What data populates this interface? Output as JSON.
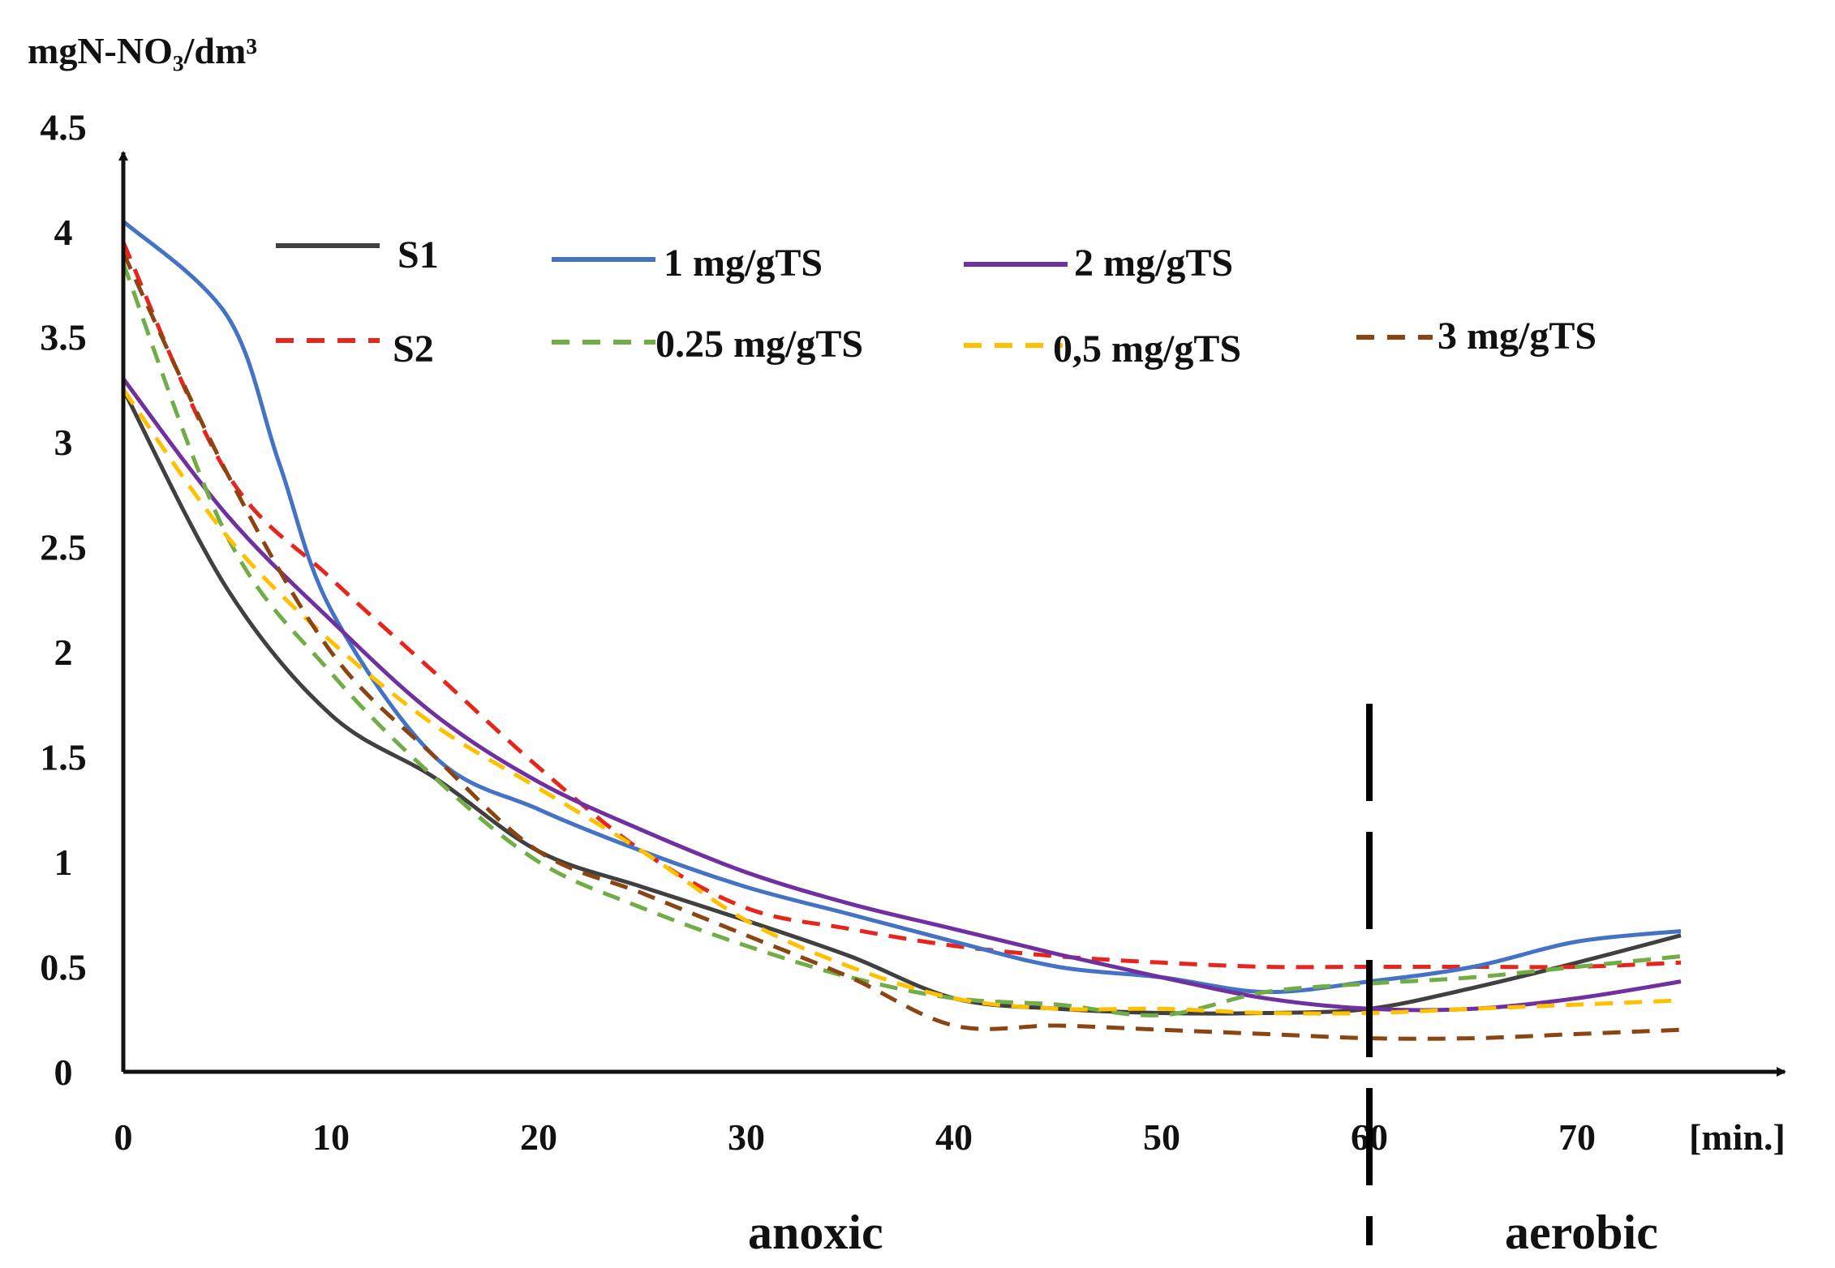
{
  "chart_data": {
    "type": "line",
    "ylabel": "mgN-NO₃/dm³",
    "xlabel": "[min.]",
    "xlim": [
      0,
      75
    ],
    "ylim": [
      0,
      4.5
    ],
    "xticks": [
      0,
      10,
      20,
      30,
      40,
      50,
      60,
      70
    ],
    "xtick_labels": [
      "0",
      "10",
      "20",
      "30",
      "40",
      "50",
      "60",
      "70"
    ],
    "yticks": [
      0,
      0.5,
      1,
      1.5,
      2,
      2.5,
      3,
      3.5,
      4,
      4.5
    ],
    "ytick_labels": [
      "0",
      "0.5",
      "1",
      "1.5",
      "2",
      "2.5",
      "3",
      "3.5",
      "4",
      "4.5"
    ],
    "phase_divider_x": 60,
    "phase_labels": [
      "anoxic",
      "aerobic"
    ],
    "legend_position": "top",
    "series": [
      {
        "name": "S1",
        "color": "#404040",
        "dash": "solid",
        "x": [
          0,
          5,
          10,
          15,
          20,
          25,
          30,
          35,
          40,
          45,
          50,
          55,
          60,
          65,
          70,
          75
        ],
        "y": [
          3.25,
          2.3,
          1.7,
          1.4,
          1.05,
          0.88,
          0.72,
          0.55,
          0.35,
          0.3,
          0.28,
          0.28,
          0.3,
          0.4,
          0.52,
          0.65
        ]
      },
      {
        "name": "S2",
        "color": "#e8251c",
        "dash": "dashed",
        "x": [
          0,
          5,
          10,
          15,
          20,
          25,
          30,
          35,
          40,
          45,
          50,
          55,
          60,
          65,
          70,
          75
        ],
        "y": [
          3.95,
          2.85,
          2.35,
          1.9,
          1.45,
          1.05,
          0.78,
          0.68,
          0.6,
          0.55,
          0.52,
          0.5,
          0.5,
          0.5,
          0.5,
          0.52
        ]
      },
      {
        "name": "1 mg/gTS",
        "color": "#4472c4",
        "dash": "solid",
        "x": [
          0,
          5,
          7.5,
          10,
          15,
          20,
          25,
          30,
          35,
          40,
          45,
          50,
          55,
          60,
          65,
          70,
          75
        ],
        "y": [
          4.05,
          3.6,
          2.9,
          2.2,
          1.5,
          1.25,
          1.05,
          0.88,
          0.75,
          0.62,
          0.5,
          0.45,
          0.38,
          0.43,
          0.5,
          0.62,
          0.67
        ]
      },
      {
        "name": "2 mg/gTS",
        "color": "#7030a0",
        "dash": "solid",
        "x": [
          0,
          5,
          10,
          15,
          20,
          25,
          30,
          35,
          40,
          45,
          50,
          55,
          60,
          65,
          70,
          75
        ],
        "y": [
          3.3,
          2.65,
          2.15,
          1.7,
          1.38,
          1.15,
          0.95,
          0.8,
          0.68,
          0.56,
          0.45,
          0.35,
          0.3,
          0.3,
          0.35,
          0.43
        ]
      },
      {
        "name": "0.25 mg/gTS",
        "color": "#70ad47",
        "dash": "dashed",
        "x": [
          0,
          5,
          10,
          15,
          20,
          25,
          30,
          35,
          40,
          45,
          50,
          55,
          60,
          65,
          70,
          75
        ],
        "y": [
          3.85,
          2.55,
          1.9,
          1.4,
          1.0,
          0.78,
          0.6,
          0.45,
          0.35,
          0.32,
          0.27,
          0.38,
          0.42,
          0.45,
          0.5,
          0.55
        ]
      },
      {
        "name": "0,5 mg/gTS",
        "color": "#ffc000",
        "dash": "dashed",
        "x": [
          0,
          5,
          10,
          15,
          20,
          25,
          30,
          35,
          40,
          45,
          50,
          55,
          60,
          65,
          70,
          75
        ],
        "y": [
          3.25,
          2.55,
          2.05,
          1.65,
          1.35,
          1.05,
          0.72,
          0.5,
          0.35,
          0.3,
          0.3,
          0.28,
          0.28,
          0.3,
          0.32,
          0.34
        ]
      },
      {
        "name": "3 mg/gTS",
        "color": "#8b4513",
        "dash": "dashed",
        "x": [
          0,
          5,
          10,
          15,
          20,
          25,
          30,
          35,
          40,
          45,
          50,
          55,
          60,
          65,
          70,
          75
        ],
        "y": [
          3.9,
          2.85,
          2.0,
          1.5,
          1.05,
          0.85,
          0.65,
          0.45,
          0.22,
          0.22,
          0.2,
          0.18,
          0.16,
          0.16,
          0.18,
          0.2
        ]
      }
    ]
  }
}
